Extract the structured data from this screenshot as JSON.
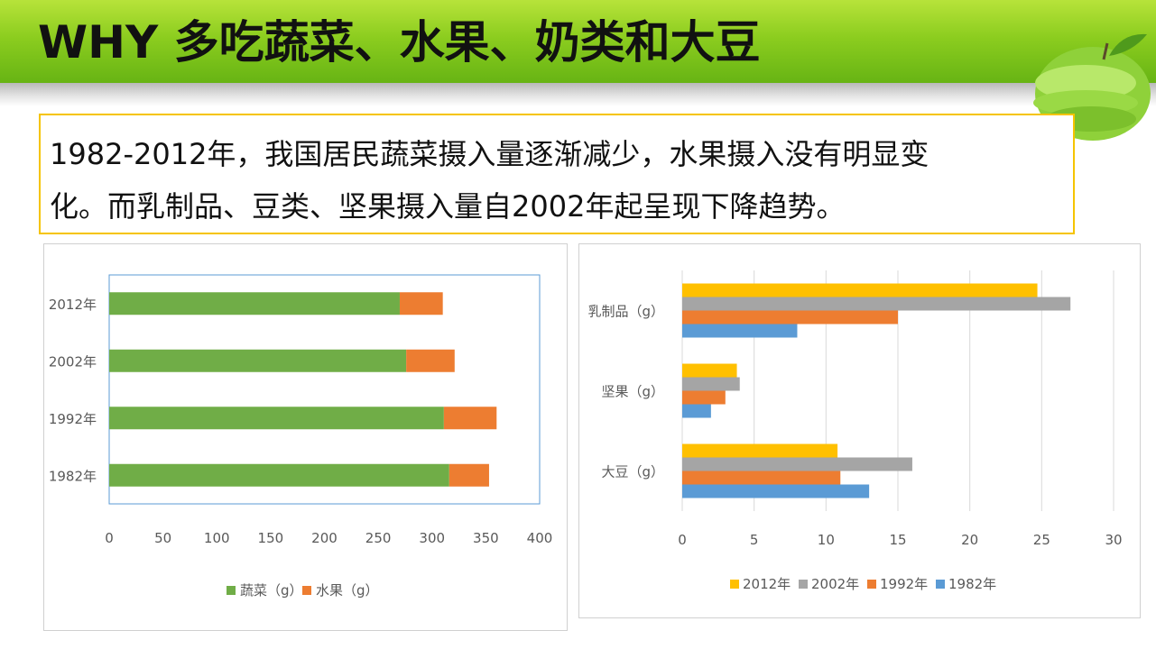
{
  "slide": {
    "title": "WHY 多吃蔬菜、水果、奶类和大豆",
    "text_line1": "1982-2012年，我国居民蔬菜摄入量逐渐减少，水果摄入没有明显变",
    "text_line2": "化。而乳制品、豆类、坚果摄入量自2002年起呈现下降趋势。"
  },
  "colors": {
    "header_green": "#8ccd1f",
    "vegetable": "#70ad47",
    "fruit": "#ed7d31",
    "y2012": "#ffc000",
    "y2002": "#a5a5a5",
    "y1992": "#ed7d31",
    "y1982": "#5b9bd5",
    "box_border": "#f5c400"
  },
  "chart_data": [
    {
      "type": "bar",
      "orientation": "horizontal",
      "stacked": true,
      "categories": [
        "2012年",
        "2002年",
        "1992年",
        "1982年"
      ],
      "series": [
        {
          "name": "蔬菜（g）",
          "values": [
            270,
            276,
            311,
            316
          ]
        },
        {
          "name": "水果（g）",
          "values": [
            40,
            45,
            49,
            37
          ]
        }
      ],
      "xlim": [
        0,
        400
      ],
      "xticks": [
        "0",
        "50",
        "100",
        "150",
        "200",
        "250",
        "300",
        "350",
        "400"
      ],
      "legend": "bottom",
      "grid": false
    },
    {
      "type": "bar",
      "orientation": "horizontal",
      "categories": [
        "乳制品（g）",
        "坚果（g）",
        "大豆（g）"
      ],
      "series": [
        {
          "name": "2012年",
          "values": [
            24.7,
            3.8,
            10.8
          ]
        },
        {
          "name": "2002年",
          "values": [
            27.0,
            4.0,
            16.0
          ]
        },
        {
          "name": "1992年",
          "values": [
            15.0,
            3.0,
            11.0
          ]
        },
        {
          "name": "1982年",
          "values": [
            8.0,
            2.0,
            13.0
          ]
        }
      ],
      "xlim": [
        0,
        30
      ],
      "xticks": [
        "0",
        "5",
        "10",
        "15",
        "20",
        "25",
        "30"
      ],
      "legend": "bottom",
      "grid": true
    }
  ]
}
